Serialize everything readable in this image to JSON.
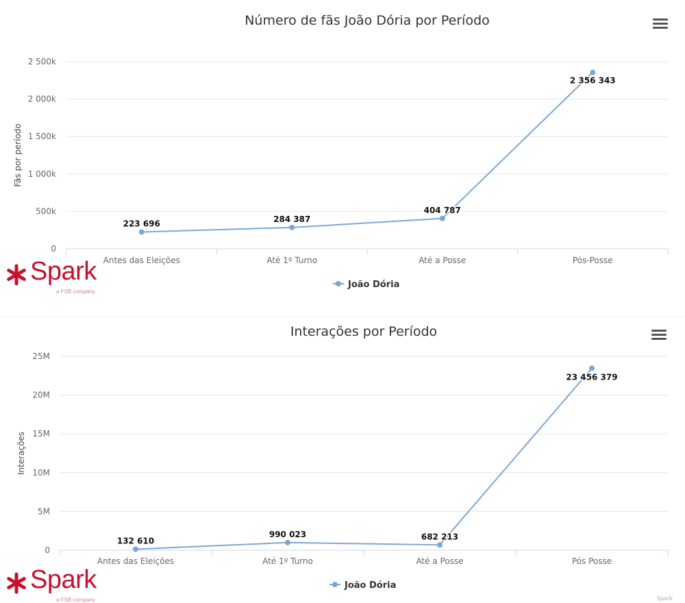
{
  "chart_data": [
    {
      "type": "line",
      "title": "Número de fãs João Dória por Período",
      "ylabel": "Fãs por período",
      "xlabel": "",
      "categories": [
        "Antes das Eleições",
        "Até 1º Turno",
        "Até a Posse",
        "Pós-Posse"
      ],
      "series": [
        {
          "name": "João Dória",
          "values": [
            223696,
            284387,
            404787,
            2356343
          ],
          "labels": [
            "223 696",
            "284 387",
            "404 787",
            "2 356 343"
          ]
        }
      ],
      "ylim": [
        0,
        2500000
      ],
      "yticks": [
        0,
        500000,
        1000000,
        1500000,
        2000000,
        2500000
      ],
      "ytick_labels": [
        "0",
        "500k",
        "1 000k",
        "1 500k",
        "2 000k",
        "2 500k"
      ],
      "grid": true,
      "legend": "bottom-center",
      "color": "#7ba7d7"
    },
    {
      "type": "line",
      "title": "Interações por Período",
      "ylabel": "Interações",
      "xlabel": "",
      "categories": [
        "Antes das Eleições",
        "Até 1º Turno",
        "Até a Posse",
        "Pós Posse"
      ],
      "series": [
        {
          "name": "João Dória",
          "values": [
            132610,
            990023,
            682213,
            23456379
          ],
          "labels": [
            "132 610",
            "990 023",
            "682 213",
            "23 456 379"
          ]
        }
      ],
      "ylim": [
        0,
        25000000
      ],
      "yticks": [
        0,
        5000000,
        10000000,
        15000000,
        20000000,
        25000000
      ],
      "ytick_labels": [
        "0",
        "5M",
        "10M",
        "15M",
        "20M",
        "25M"
      ],
      "grid": true,
      "legend": "bottom-center",
      "color": "#7ba7d7"
    }
  ],
  "branding": {
    "logo_text": "Spark",
    "logo_color": "#c8102e",
    "logo_sub": "a FSB company"
  },
  "menu_icon": "hamburger-menu-icon",
  "credit": "Spark"
}
